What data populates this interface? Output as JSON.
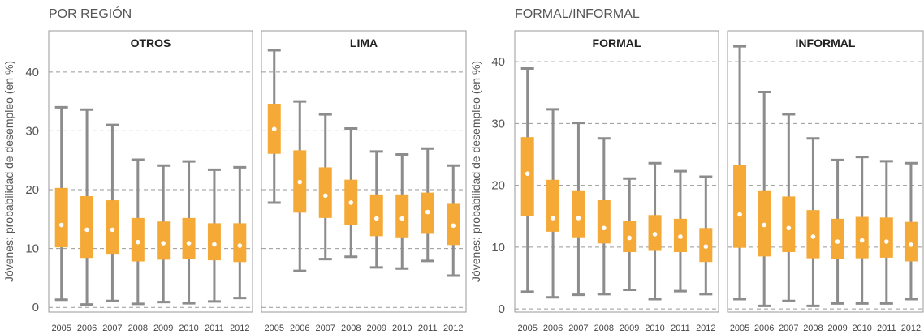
{
  "sections": [
    {
      "title": "POR REGIÓN"
    },
    {
      "title": "FORMAL/INFORMAL"
    }
  ],
  "colors": {
    "box": "#f5a937",
    "whisker": "#8c8c8c",
    "median": "#ffffff",
    "grid": "#999999",
    "frame": "#999999"
  },
  "chart_data": [
    {
      "type": "boxplot",
      "section": "POR REGIÓN",
      "ylabel": "Jóvenes: probabilidad de desempleo (en %)",
      "ylim": [
        -0.8,
        47
      ],
      "yticks": [
        0,
        10,
        20,
        30,
        40
      ],
      "grid": true,
      "categories": [
        "2005",
        "2006",
        "2007",
        "2008",
        "2009",
        "2010",
        "2011",
        "2012"
      ],
      "panels": [
        {
          "title": "OTROS",
          "boxes": [
            {
              "min": 1.3,
              "q1": 10.2,
              "median": 14.0,
              "q3": 20.3,
              "max": 34.0
            },
            {
              "min": 0.5,
              "q1": 8.4,
              "median": 13.2,
              "q3": 18.9,
              "max": 33.6
            },
            {
              "min": 1.1,
              "q1": 9.1,
              "median": 13.2,
              "q3": 18.2,
              "max": 31.0
            },
            {
              "min": 0.6,
              "q1": 7.8,
              "median": 11.1,
              "q3": 15.2,
              "max": 25.1
            },
            {
              "min": 0.9,
              "q1": 8.1,
              "median": 10.9,
              "q3": 14.6,
              "max": 24.1
            },
            {
              "min": 0.7,
              "q1": 8.2,
              "median": 10.9,
              "q3": 15.2,
              "max": 24.8
            },
            {
              "min": 1.0,
              "q1": 8.0,
              "median": 10.7,
              "q3": 14.3,
              "max": 23.4
            },
            {
              "min": 1.6,
              "q1": 7.7,
              "median": 10.5,
              "q3": 14.3,
              "max": 23.8
            }
          ]
        },
        {
          "title": "LIMA",
          "boxes": [
            {
              "min": 17.8,
              "q1": 26.1,
              "median": 30.3,
              "q3": 34.6,
              "max": 43.7
            },
            {
              "min": 6.2,
              "q1": 16.1,
              "median": 21.3,
              "q3": 26.7,
              "max": 35.0
            },
            {
              "min": 8.2,
              "q1": 15.2,
              "median": 19.0,
              "q3": 23.8,
              "max": 32.8
            },
            {
              "min": 8.6,
              "q1": 14.0,
              "median": 17.8,
              "q3": 21.7,
              "max": 30.4
            },
            {
              "min": 6.8,
              "q1": 12.1,
              "median": 15.1,
              "q3": 19.2,
              "max": 26.5
            },
            {
              "min": 6.6,
              "q1": 11.9,
              "median": 15.1,
              "q3": 19.2,
              "max": 26.0
            },
            {
              "min": 7.9,
              "q1": 12.5,
              "median": 16.2,
              "q3": 19.5,
              "max": 27.0
            },
            {
              "min": 5.4,
              "q1": 10.6,
              "median": 13.9,
              "q3": 17.6,
              "max": 24.1
            }
          ]
        }
      ]
    },
    {
      "type": "boxplot",
      "section": "FORMAL/INFORMAL",
      "ylabel": "Jóvenes: probabilidad de desempleo (en %)",
      "ylim": [
        -0.5,
        45
      ],
      "yticks": [
        0,
        10,
        20,
        30,
        40
      ],
      "grid": true,
      "categories": [
        "2005",
        "2006",
        "2007",
        "2008",
        "2009",
        "2010",
        "2011",
        "2012"
      ],
      "panels": [
        {
          "title": "FORMAL",
          "boxes": [
            {
              "min": 2.8,
              "q1": 15.1,
              "median": 21.9,
              "q3": 27.8,
              "max": 38.9
            },
            {
              "min": 1.9,
              "q1": 12.5,
              "median": 14.7,
              "q3": 20.9,
              "max": 32.3
            },
            {
              "min": 2.3,
              "q1": 11.6,
              "median": 14.7,
              "q3": 19.2,
              "max": 30.1
            },
            {
              "min": 2.4,
              "q1": 10.6,
              "median": 13.1,
              "q3": 17.6,
              "max": 27.6
            },
            {
              "min": 3.1,
              "q1": 9.2,
              "median": 11.5,
              "q3": 14.2,
              "max": 21.1
            },
            {
              "min": 1.6,
              "q1": 9.4,
              "median": 12.1,
              "q3": 15.2,
              "max": 23.6
            },
            {
              "min": 2.9,
              "q1": 9.2,
              "median": 11.7,
              "q3": 14.6,
              "max": 22.3
            },
            {
              "min": 2.4,
              "q1": 7.6,
              "median": 10.1,
              "q3": 13.1,
              "max": 21.4
            }
          ]
        },
        {
          "title": "INFORMAL",
          "boxes": [
            {
              "min": 1.6,
              "q1": 9.9,
              "median": 15.3,
              "q3": 23.3,
              "max": 42.5
            },
            {
              "min": 0.5,
              "q1": 8.5,
              "median": 13.6,
              "q3": 19.2,
              "max": 35.1
            },
            {
              "min": 1.3,
              "q1": 9.2,
              "median": 13.1,
              "q3": 18.2,
              "max": 31.5
            },
            {
              "min": 0.5,
              "q1": 8.2,
              "median": 11.7,
              "q3": 16.0,
              "max": 27.6
            },
            {
              "min": 0.9,
              "q1": 8.1,
              "median": 10.9,
              "q3": 14.6,
              "max": 24.1
            },
            {
              "min": 0.9,
              "q1": 8.2,
              "median": 11.1,
              "q3": 14.9,
              "max": 24.6
            },
            {
              "min": 0.9,
              "q1": 8.3,
              "median": 10.9,
              "q3": 14.8,
              "max": 23.9
            },
            {
              "min": 1.6,
              "q1": 7.7,
              "median": 10.4,
              "q3": 14.1,
              "max": 23.6
            }
          ]
        }
      ]
    }
  ]
}
